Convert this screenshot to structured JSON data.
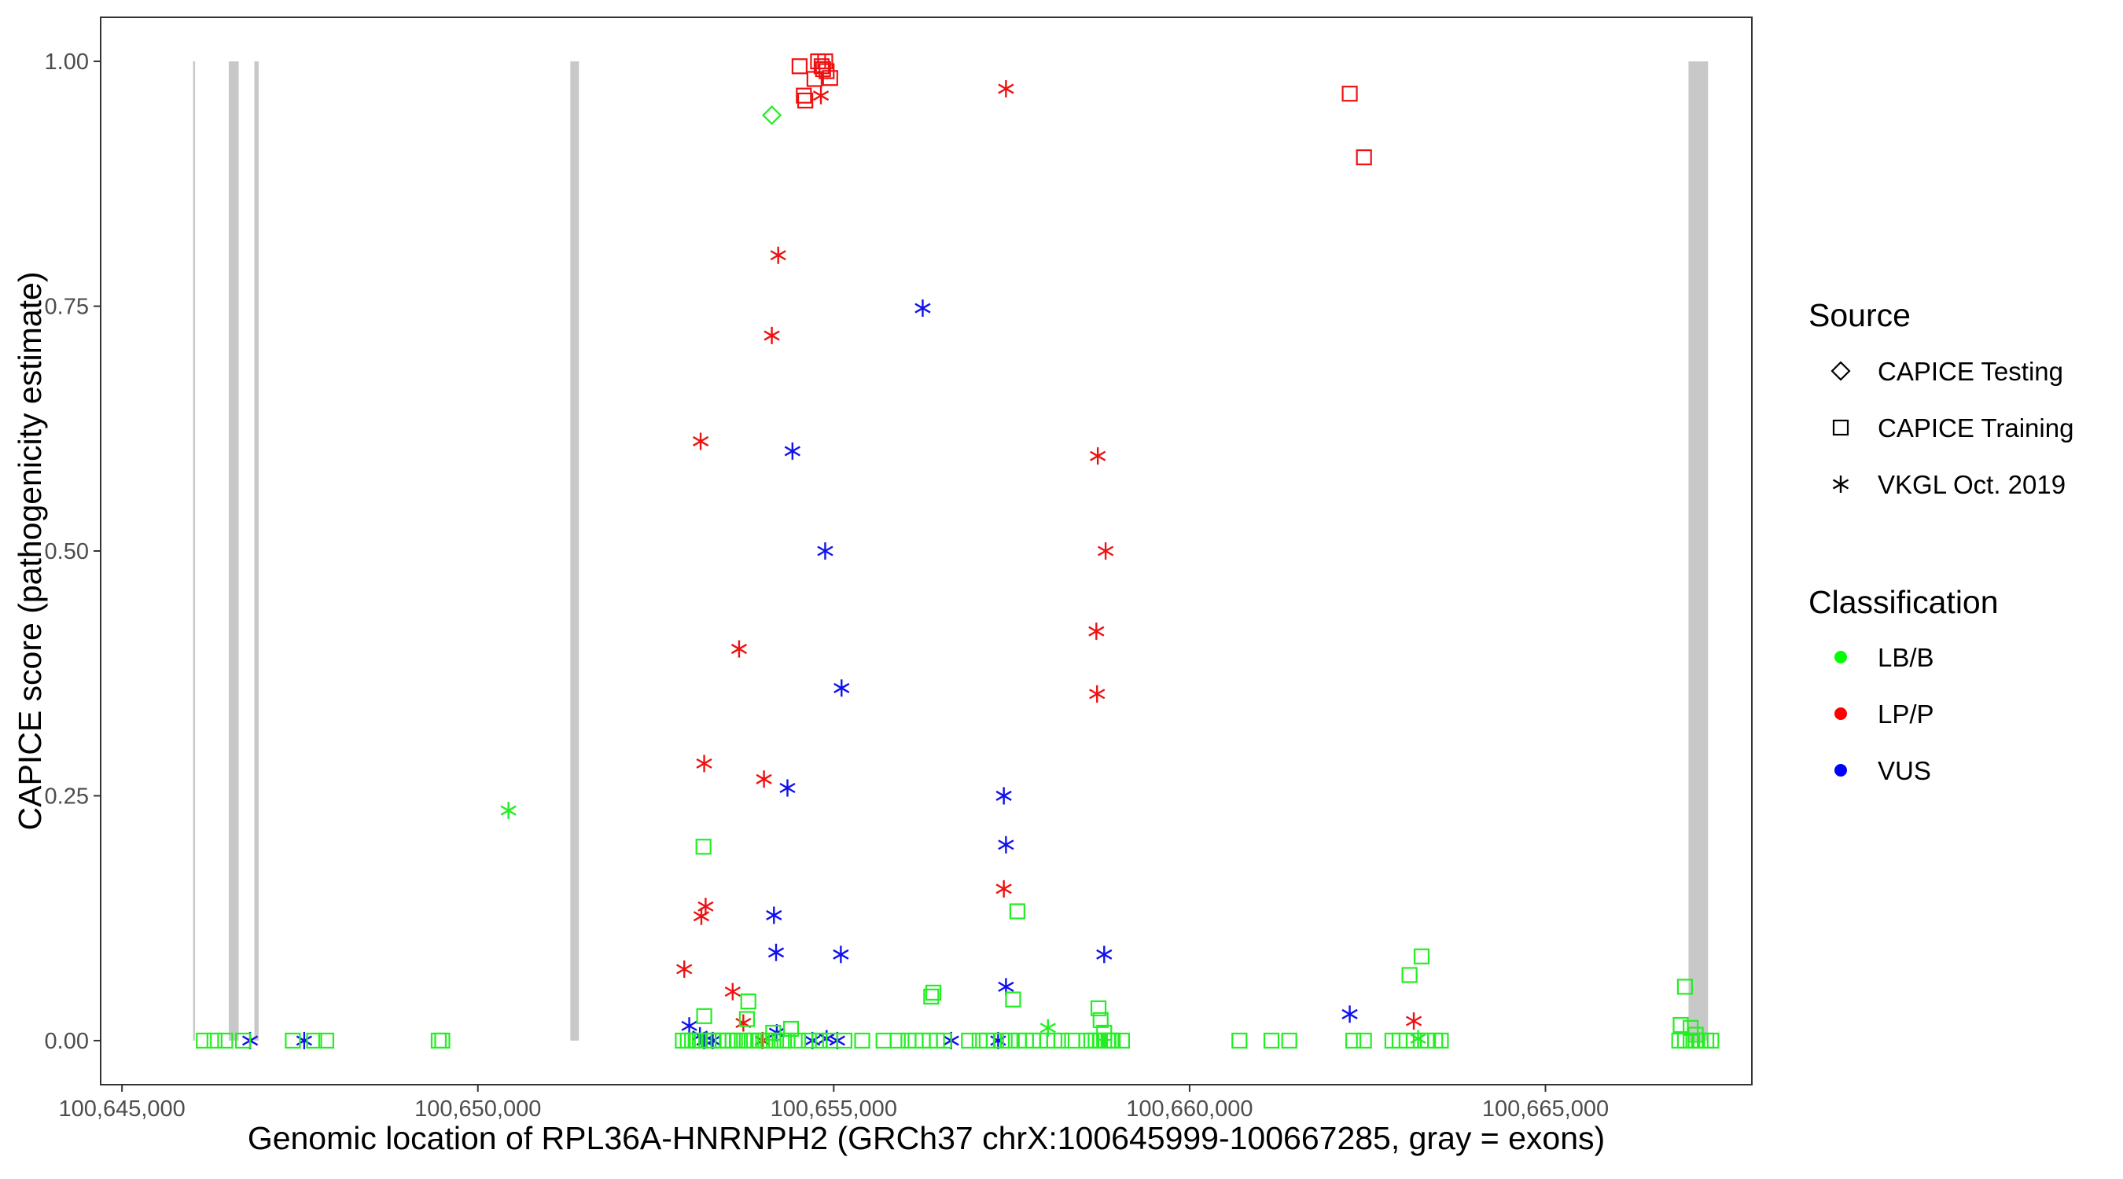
{
  "chart_data": {
    "type": "scatter",
    "title": "",
    "xlabel": "Genomic location of RPL36A-HNRNPH2 (GRCh37 chrX:100645999-100667285, gray = exons)",
    "ylabel": "CAPICE score (pathogenicity estimate)",
    "xlim": [
      100644700,
      100667900
    ],
    "ylim": [
      -0.045,
      1.045
    ],
    "x_ticks": [
      100645000,
      100650000,
      100655000,
      100660000,
      100665000
    ],
    "x_tick_labels": [
      "100,645,000",
      "100,650,000",
      "100,655,000",
      "100,660,000",
      "100,665,000"
    ],
    "y_ticks": [
      0,
      0.25,
      0.5,
      0.75,
      1
    ],
    "y_tick_labels": [
      "0.00",
      "0.25",
      "0.50",
      "0.75",
      "1.00"
    ],
    "grid": false,
    "legend_position": "right",
    "exons": [
      [
        100645999,
        100646020
      ],
      [
        100646500,
        100646640
      ],
      [
        100646860,
        100646920
      ],
      [
        100651299,
        100651420
      ],
      [
        100667010,
        100667285
      ]
    ],
    "legend": {
      "source_title": "Source",
      "source_entries": [
        {
          "label": "CAPICE Testing",
          "shape": "diamond"
        },
        {
          "label": "CAPICE Training",
          "shape": "square"
        },
        {
          "label": "VKGL Oct. 2019",
          "shape": "star"
        }
      ],
      "class_title": "Classification",
      "class_entries": [
        {
          "label": "LB/B",
          "color": "#00ff00"
        },
        {
          "label": "LP/P",
          "color": "#ff0000"
        },
        {
          "label": "VUS",
          "color": "#0000ff"
        }
      ]
    },
    "colors": {
      "LB/B": "#22ee22",
      "LP/P": "#ee1111",
      "VUS": "#1111ee"
    },
    "series": [
      {
        "source": "CAPICE Testing",
        "class": "LB/B",
        "x": [
          100654130
        ],
        "y": [
          0.945
        ]
      },
      {
        "source": "CAPICE Training",
        "class": "LP/P",
        "x": [
          100654520,
          100654580,
          100654730,
          100654780,
          100654850,
          100654880,
          100654830,
          100654950,
          100654900,
          100654600,
          100662250,
          100662450
        ],
        "y": [
          0.995,
          0.965,
          0.982,
          1.0,
          0.992,
          1.0,
          0.995,
          0.983,
          0.99,
          0.96,
          0.967,
          0.902
        ]
      },
      {
        "source": "VKGL Oct. 2019",
        "class": "LP/P",
        "x": [
          100654820,
          100657420,
          100654220,
          100654130,
          100653130,
          100658710,
          100658820,
          100658690,
          100658700,
          100653670,
          100653180,
          100654020,
          100657390,
          100653200,
          100653140,
          100652900,
          100653580,
          100653730,
          100654000,
          100663150
        ],
        "y": [
          0.965,
          0.972,
          0.802,
          0.72,
          0.612,
          0.597,
          0.5,
          0.418,
          0.354,
          0.4,
          0.283,
          0.267,
          0.155,
          0.137,
          0.127,
          0.073,
          0.05,
          0.018,
          0.0,
          0.02
        ]
      },
      {
        "source": "VKGL Oct. 2019",
        "class": "VUS",
        "x": [
          100656250,
          100654420,
          100654880,
          100655110,
          100654350,
          100657390,
          100657420,
          100654160,
          100654190,
          100655100,
          100658800,
          100657420,
          100662250,
          100646800,
          100647560,
          100652970,
          100653120,
          100653180,
          100653300,
          100654200,
          100654700,
          100654900,
          100655050,
          100656650,
          100657310
        ],
        "y": [
          0.748,
          0.602,
          0.5,
          0.36,
          0.258,
          0.25,
          0.2,
          0.128,
          0.09,
          0.088,
          0.088,
          0.055,
          0.027,
          0.0,
          0.0,
          0.015,
          0.005,
          0.0,
          0.0,
          0.008,
          0.0,
          0.002,
          0.0,
          0.0,
          0.0
        ]
      },
      {
        "source": "VKGL Oct. 2019",
        "class": "LB/B",
        "x": [
          100650430,
          100658010,
          100663210
        ],
        "y": [
          0.235,
          0.013,
          0.002
        ]
      },
      {
        "source": "CAPICE Training",
        "class": "LB/B",
        "x": [
          100653170,
          100657580,
          100657520,
          100656400,
          100656370,
          100663260,
          100663090,
          100666960,
          100653180,
          100653800,
          100654400,
          100653780,
          100654150,
          100658720,
          100658750,
          100658800,
          100666900,
          100667040,
          100667110,
          100646150,
          100646300,
          100646450,
          100646700,
          100647400,
          100647700,
          100647870,
          100649450,
          100649500,
          100652880,
          100652950,
          100653010,
          100653060,
          100653120,
          100653240,
          100653300,
          100653380,
          100653440,
          100653510,
          100653580,
          100653650,
          100653740,
          100653810,
          100653880,
          100653960,
          100654040,
          100654110,
          100654190,
          100654270,
          100654350,
          100654500,
          100654650,
          100654800,
          100654950,
          100655150,
          100655400,
          100655700,
          100655900,
          100656050,
          100656150,
          100656250,
          100656350,
          100656450,
          100656550,
          100656900,
          100657050,
          100657150,
          100657250,
          100657360,
          100657480,
          100657600,
          100657700,
          100657800,
          100657900,
          100658000,
          100658100,
          100658200,
          100658350,
          100658900,
          100658550,
          100658620,
          100658680,
          100658740,
          100658800,
          100658860,
          100658920,
          100659050,
          100660700,
          100661150,
          100661400,
          100662300,
          100662450,
          100662850,
          100662950,
          100663050,
          100663150,
          100663250,
          100663350,
          100663450,
          100663530,
          100666880,
          100666960,
          100667040,
          100667110,
          100667180,
          100667260,
          100667330
        ],
        "y": [
          0.198,
          0.132,
          0.042,
          0.049,
          0.045,
          0.086,
          0.067,
          0.055,
          0.025,
          0.04,
          0.012,
          0.022,
          0.008,
          0.033,
          0.021,
          0.008,
          0.016,
          0.013,
          0.006,
          0.0,
          0.0,
          0.0,
          0.0,
          0.0,
          0.0,
          0.0,
          0.0,
          0.0,
          0.0,
          0.0,
          0.0,
          0.0,
          0.0,
          0.0,
          0.0,
          0.0,
          0.0,
          0.0,
          0.0,
          0.0,
          0.0,
          0.0,
          0.0,
          0.0,
          0.0,
          0.0,
          0.0,
          0.0,
          0.0,
          0.0,
          0.0,
          0.0,
          0.0,
          0.0,
          0.0,
          0.0,
          0.0,
          0.0,
          0.0,
          0.0,
          0.0,
          0.0,
          0.0,
          0.0,
          0.0,
          0.0,
          0.0,
          0.0,
          0.0,
          0.0,
          0.0,
          0.0,
          0.0,
          0.0,
          0.0,
          0.0,
          0.0,
          0.0,
          0.0,
          0.0,
          0.0,
          0.0,
          0.0,
          0.0,
          0.0,
          0.0,
          0.0,
          0.0,
          0.0,
          0.0,
          0.0,
          0.0,
          0.0,
          0.0,
          0.0,
          0.0,
          0.0,
          0.0,
          0.0,
          0.0,
          0.0,
          0.0,
          0.0,
          0.0,
          0.0,
          0.0
        ]
      }
    ]
  }
}
